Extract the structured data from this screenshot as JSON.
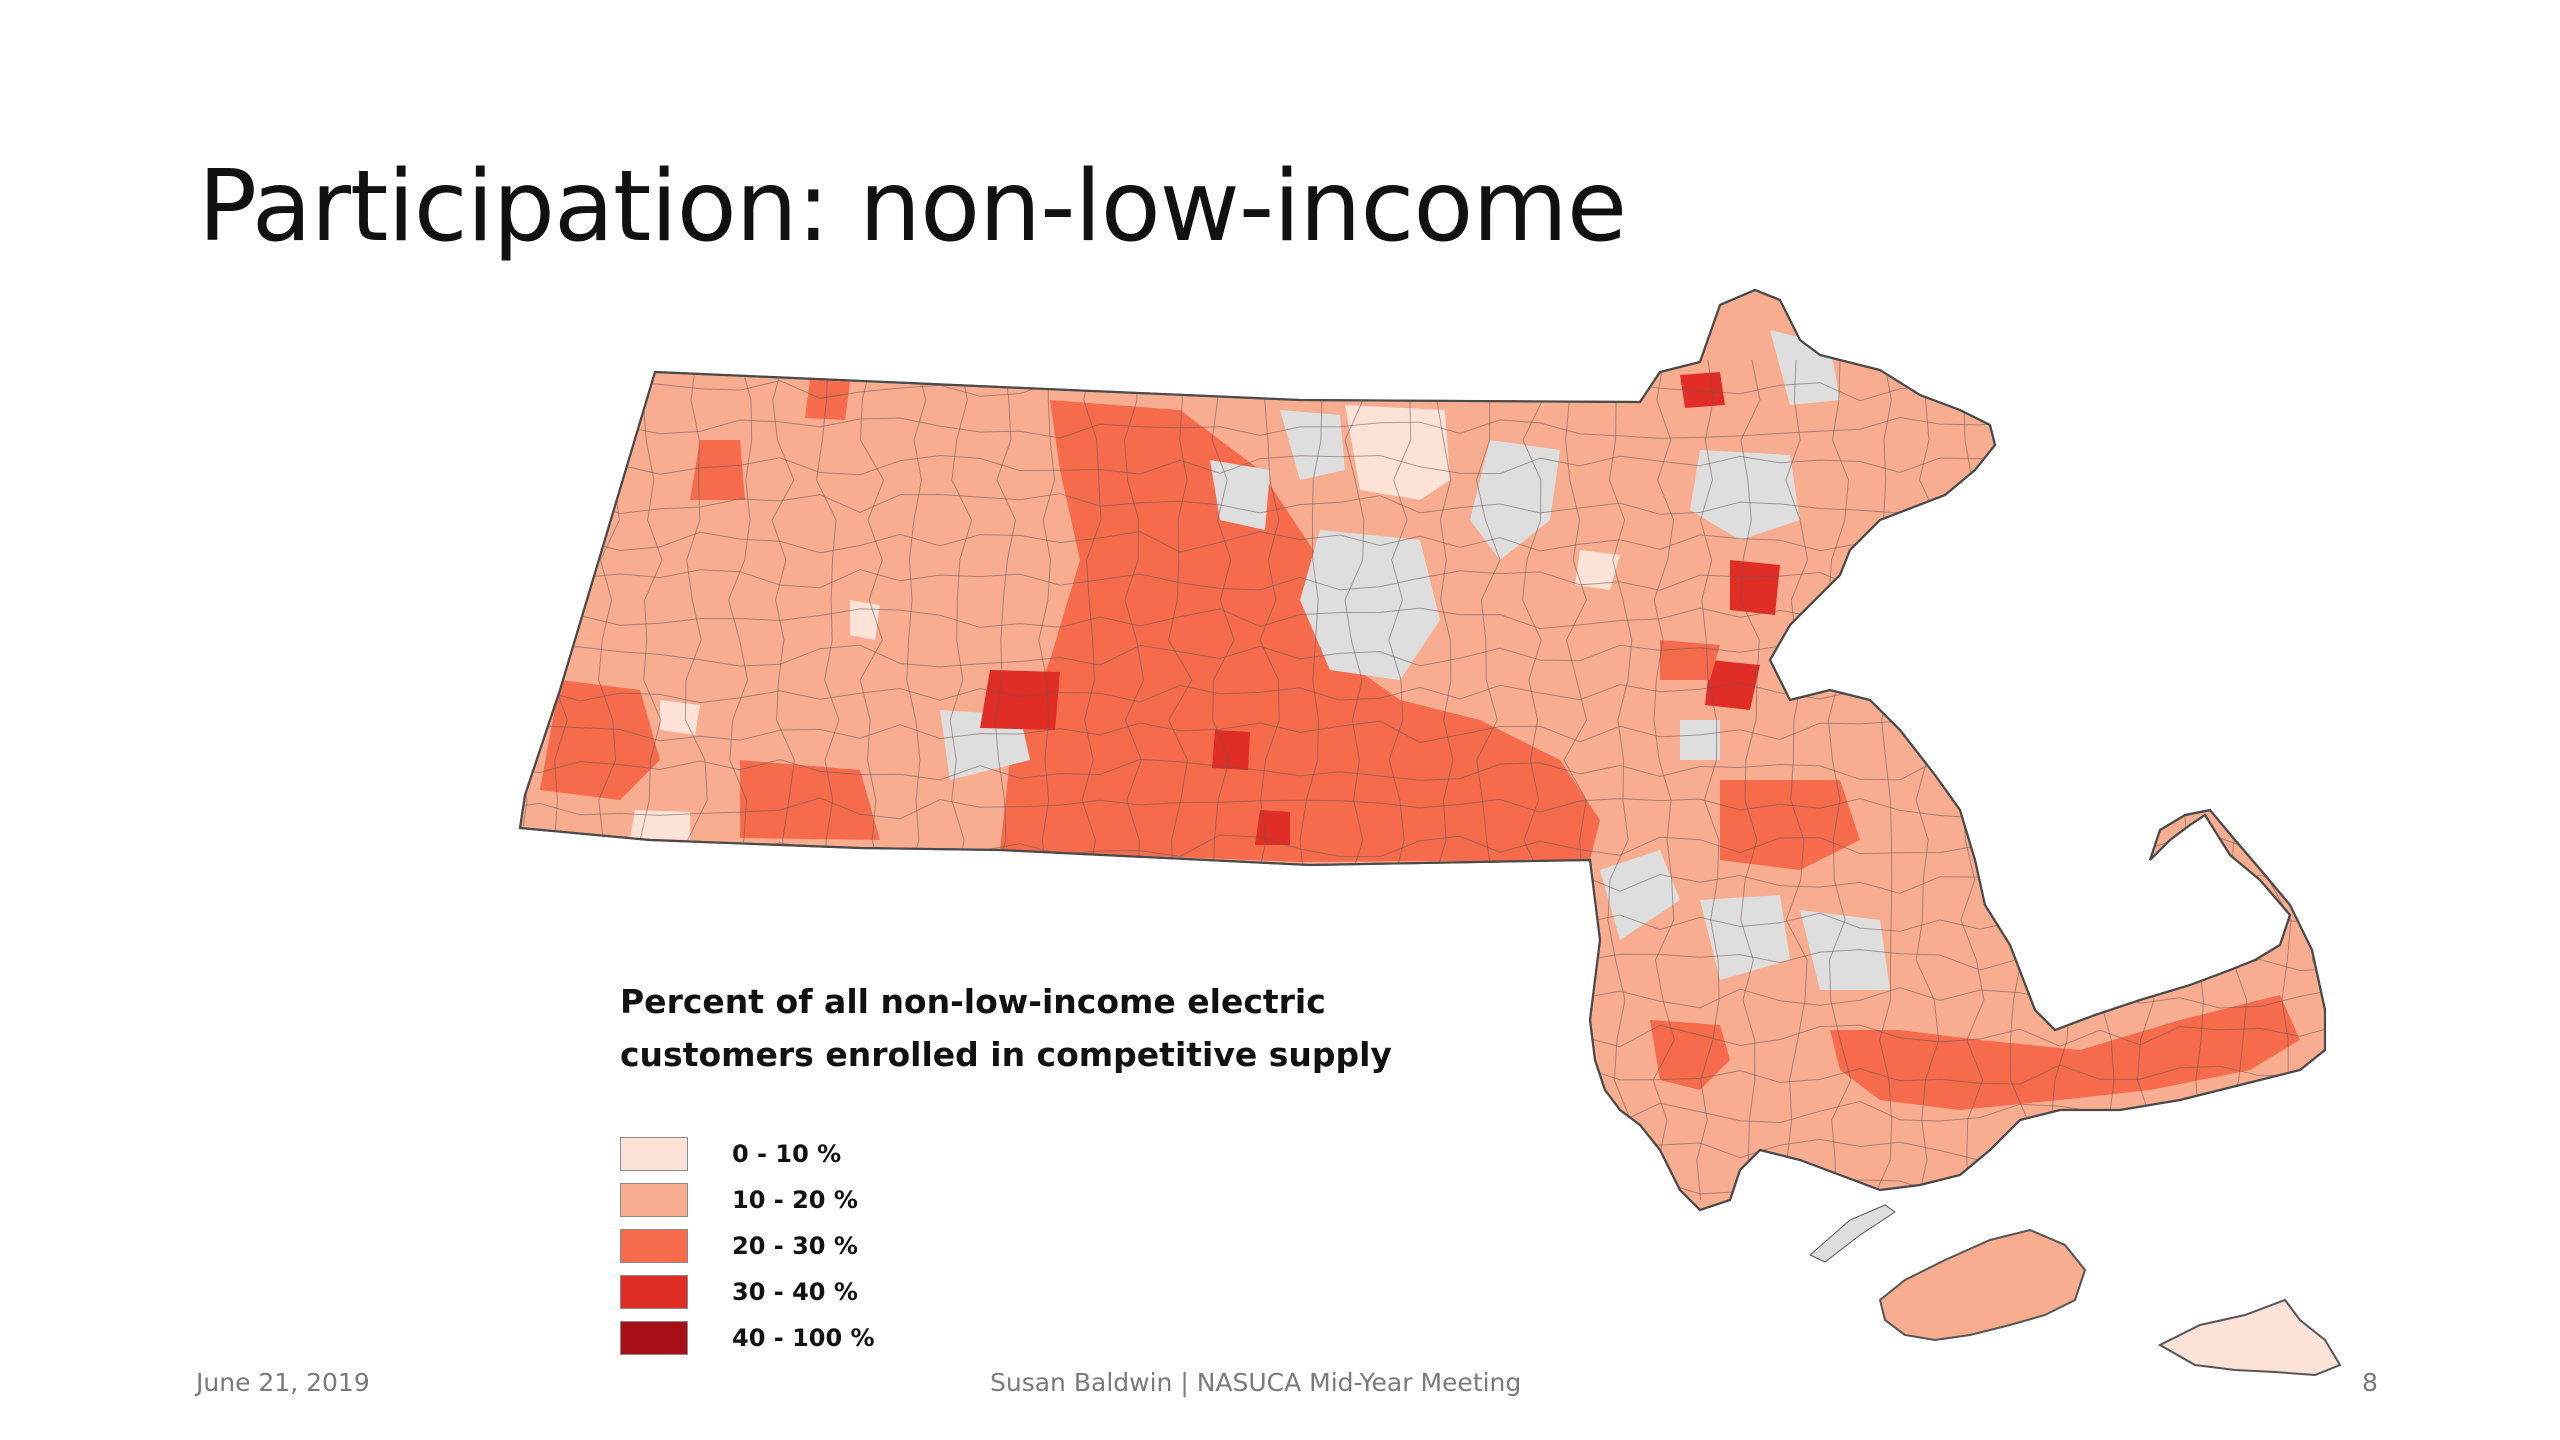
{
  "slide": {
    "title": "Participation: non-low-income"
  },
  "legend": {
    "title_line1": "Percent of all non-low-income electric",
    "title_line2": "customers enrolled in competitive supply",
    "classes": [
      {
        "label": "0 - 10 %",
        "color": "#fde3d7"
      },
      {
        "label": "10 - 20 %",
        "color": "#f9ad90"
      },
      {
        "label": "20 - 30 %",
        "color": "#f56b4c"
      },
      {
        "label": "30 - 40 %",
        "color": "#e02d25"
      },
      {
        "label": "40 - 100 %",
        "color": "#a50f15"
      }
    ],
    "no_data_color": "#dedede"
  },
  "footer": {
    "date": "June 21, 2019",
    "center": "Susan Baldwin   |   NASUCA Mid-Year Meeting",
    "page": "8"
  }
}
